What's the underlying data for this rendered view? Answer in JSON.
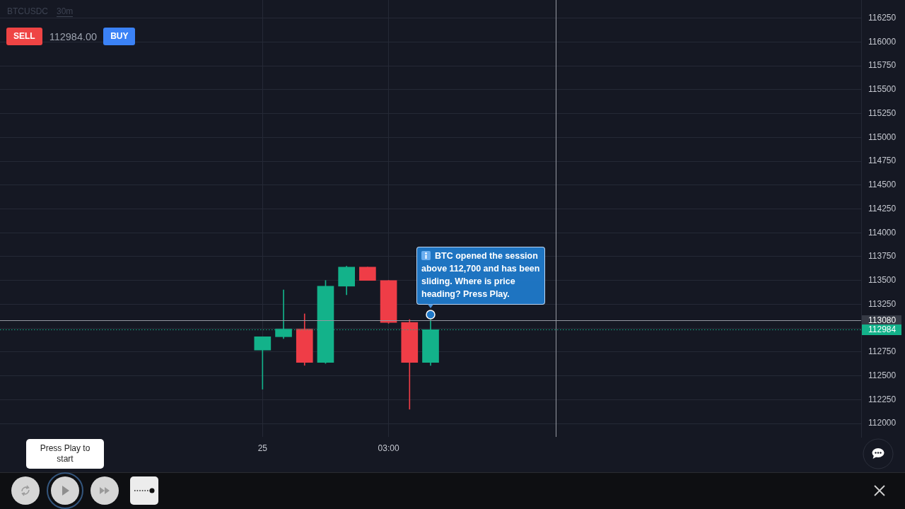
{
  "chart_data": {
    "type": "candlestick",
    "title": "BTCUSDC",
    "subtitle": "30m",
    "categories": [
      null,
      null,
      null,
      null,
      null,
      null,
      null,
      null,
      null,
      null,
      null,
      null,
      "25",
      null,
      null,
      null,
      null,
      null,
      "03:00",
      null,
      null,
      null,
      null,
      null,
      null,
      null,
      null,
      null,
      null,
      null,
      null,
      null,
      null,
      null,
      null,
      null,
      null,
      null,
      null,
      null,
      null
    ],
    "ohlc": [
      null,
      null,
      null,
      null,
      null,
      null,
      null,
      null,
      null,
      null,
      null,
      null,
      [
        112770,
        112910,
        112360,
        112910
      ],
      [
        112910,
        113400,
        112890,
        112990
      ],
      [
        112990,
        113150,
        112610,
        112640
      ],
      [
        112640,
        113500,
        112630,
        113440
      ],
      [
        113440,
        113650,
        113350,
        113640
      ],
      [
        113640,
        113640,
        113500,
        113500
      ],
      [
        113500,
        113500,
        113050,
        113060
      ],
      [
        113060,
        113090,
        112150,
        112640
      ],
      [
        112640,
        113090,
        112610,
        112984
      ],
      null,
      null,
      null,
      null,
      null,
      null,
      null,
      null,
      null,
      null,
      null,
      null,
      null,
      null,
      null,
      null,
      null,
      null,
      null,
      null
    ],
    "colors": [
      null,
      null,
      null,
      null,
      null,
      null,
      null,
      null,
      null,
      null,
      null,
      null,
      "#13b28a",
      "#13b28a",
      "#ef3d47",
      "#13b28a",
      "#13b28a",
      "#ef3d47",
      "#ef3d47",
      "#ef3d47",
      "#13b28a",
      null,
      null,
      null,
      null,
      null,
      null,
      null,
      null,
      null,
      null,
      null,
      null,
      null,
      null,
      null,
      null,
      null,
      null,
      null,
      null
    ],
    "ylim": [
      111860,
      116440
    ],
    "yticks": [
      112000,
      112250,
      112500,
      112750,
      {
        "value": 113000,
        "label": null
      },
      113250,
      113500,
      113750,
      114000,
      114250,
      114500,
      114750,
      115000,
      115250,
      115500,
      115750,
      116000,
      116250
    ],
    "grid": true,
    "ref_lines": [
      {
        "axis": "y",
        "value": 113080,
        "label": "113080",
        "color": "#9598a1"
      },
      {
        "axis": "y",
        "value": 112984,
        "label": "112984",
        "color": "#13b28a",
        "line_style": "dotted"
      }
    ],
    "annotations": [
      "SELL",
      "112984.00",
      "BUY",
      "Press Play to start",
      "BTC opened the session above 112,700 and has been sliding. Where is price heading? Press Play."
    ]
  }
}
